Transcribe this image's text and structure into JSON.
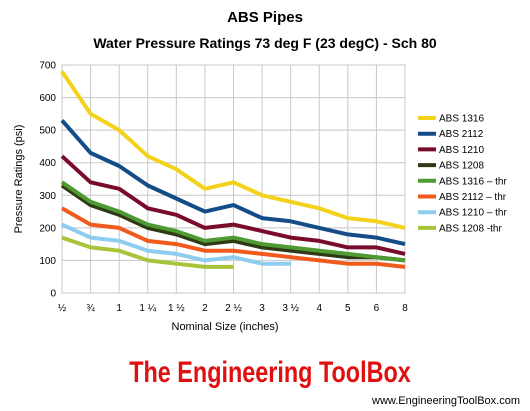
{
  "chart_data": {
    "type": "line",
    "title": "ABS Pipes",
    "subtitle": "Water Pressure Ratings 73 deg F (23 degC)  - Sch 80",
    "xlabel": "Nominal Size (inches)",
    "ylabel": "Pressure Ratings (psi)",
    "categories": [
      "½",
      "¾",
      "1",
      "1 ¼",
      "1 ½",
      "2",
      "2 ½",
      "3",
      "3 ½",
      "4",
      "5",
      "6",
      "8"
    ],
    "yticks": [
      "0",
      "100",
      "200",
      "300",
      "400",
      "500",
      "600",
      "700"
    ],
    "ylim": [
      0,
      700
    ],
    "grid": true,
    "legend_position": "right",
    "series": [
      {
        "name": "ABS 1316",
        "color": "#f2d21b",
        "values": [
          680,
          550,
          500,
          420,
          380,
          320,
          340,
          300,
          280,
          260,
          230,
          220,
          200
        ]
      },
      {
        "name": "ABS 2112",
        "color": "#134c87",
        "values": [
          530,
          430,
          390,
          330,
          290,
          250,
          270,
          230,
          220,
          200,
          180,
          170,
          150
        ]
      },
      {
        "name": "ABS 1210",
        "color": "#7a0c2b",
        "values": [
          420,
          340,
          320,
          260,
          240,
          200,
          210,
          190,
          170,
          160,
          140,
          140,
          120
        ]
      },
      {
        "name": "ABS 1208",
        "color": "#2f3a14",
        "values": [
          330,
          270,
          240,
          200,
          180,
          150,
          160,
          140,
          130,
          120,
          110,
          110,
          100
        ]
      },
      {
        "name": "ABS 1316 – thr",
        "color": "#4f9a33",
        "values": [
          340,
          280,
          250,
          210,
          190,
          160,
          170,
          150,
          140,
          130,
          120,
          110,
          100
        ]
      },
      {
        "name": "ABS 2112 – thr",
        "color": "#f05a1c",
        "values": [
          260,
          210,
          200,
          160,
          150,
          130,
          130,
          120,
          110,
          100,
          90,
          90,
          80
        ]
      },
      {
        "name": "ABS 1210 – thr",
        "color": "#8fcdf0",
        "values": [
          210,
          170,
          160,
          130,
          120,
          100,
          110,
          90,
          90,
          null,
          null,
          null,
          null
        ]
      },
      {
        "name": "ABS 1208 -thr",
        "color": "#a8c43a",
        "values": [
          170,
          140,
          130,
          100,
          90,
          80,
          80,
          null,
          null,
          null,
          null,
          null,
          null
        ]
      }
    ]
  },
  "brand": {
    "name": "The Engineering ToolBox",
    "url": "www.EngineeringToolBox.com",
    "color": "#e01010"
  }
}
